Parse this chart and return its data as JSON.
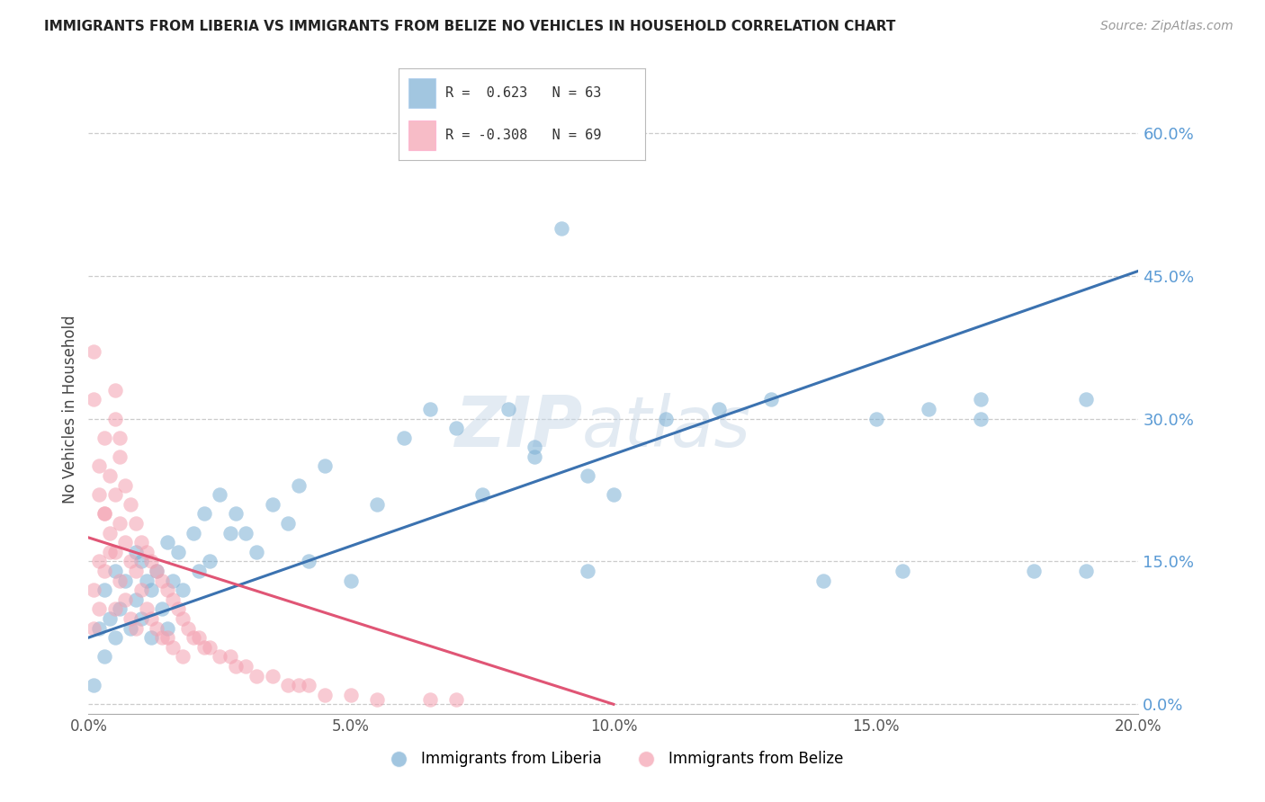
{
  "title": "IMMIGRANTS FROM LIBERIA VS IMMIGRANTS FROM BELIZE NO VEHICLES IN HOUSEHOLD CORRELATION CHART",
  "source": "Source: ZipAtlas.com",
  "ylabel": "No Vehicles in Household",
  "xlim": [
    0.0,
    0.2
  ],
  "ylim": [
    -0.01,
    0.63
  ],
  "yticks": [
    0.0,
    0.15,
    0.3,
    0.45,
    0.6
  ],
  "xticks": [
    0.0,
    0.05,
    0.1,
    0.15,
    0.2
  ],
  "liberia_R": 0.623,
  "liberia_N": 63,
  "belize_R": -0.308,
  "belize_N": 69,
  "liberia_color": "#7BAFD4",
  "belize_color": "#F4A0B0",
  "liberia_line_color": "#3B72B0",
  "belize_line_color": "#E05575",
  "watermark_zip": "ZIP",
  "watermark_atlas": "atlas",
  "background_color": "#FFFFFF",
  "grid_color": "#CCCCCC",
  "axis_label_color": "#5B9BD5",
  "blue_line_x0": 0.0,
  "blue_line_y0": 0.07,
  "blue_line_x1": 0.2,
  "blue_line_y1": 0.455,
  "pink_line_x0": 0.0,
  "pink_line_y0": 0.175,
  "pink_line_x1": 0.1,
  "pink_line_y1": 0.0,
  "liberia_x": [
    0.001,
    0.002,
    0.003,
    0.003,
    0.004,
    0.005,
    0.005,
    0.006,
    0.007,
    0.008,
    0.009,
    0.009,
    0.01,
    0.01,
    0.011,
    0.012,
    0.012,
    0.013,
    0.014,
    0.015,
    0.015,
    0.016,
    0.017,
    0.018,
    0.02,
    0.021,
    0.022,
    0.023,
    0.025,
    0.027,
    0.028,
    0.03,
    0.032,
    0.035,
    0.038,
    0.04,
    0.042,
    0.045,
    0.05,
    0.055,
    0.06,
    0.065,
    0.07,
    0.075,
    0.08,
    0.085,
    0.09,
    0.095,
    0.1,
    0.11,
    0.12,
    0.13,
    0.14,
    0.15,
    0.16,
    0.17,
    0.18,
    0.19,
    0.085,
    0.095,
    0.155,
    0.17,
    0.19
  ],
  "liberia_y": [
    0.02,
    0.08,
    0.12,
    0.05,
    0.09,
    0.14,
    0.07,
    0.1,
    0.13,
    0.08,
    0.16,
    0.11,
    0.15,
    0.09,
    0.13,
    0.12,
    0.07,
    0.14,
    0.1,
    0.17,
    0.08,
    0.13,
    0.16,
    0.12,
    0.18,
    0.14,
    0.2,
    0.15,
    0.22,
    0.18,
    0.2,
    0.18,
    0.16,
    0.21,
    0.19,
    0.23,
    0.15,
    0.25,
    0.13,
    0.21,
    0.28,
    0.31,
    0.29,
    0.22,
    0.31,
    0.26,
    0.5,
    0.24,
    0.22,
    0.3,
    0.31,
    0.32,
    0.13,
    0.3,
    0.31,
    0.32,
    0.14,
    0.14,
    0.27,
    0.14,
    0.14,
    0.3,
    0.32
  ],
  "belize_x": [
    0.001,
    0.001,
    0.001,
    0.002,
    0.002,
    0.002,
    0.003,
    0.003,
    0.003,
    0.004,
    0.004,
    0.005,
    0.005,
    0.005,
    0.005,
    0.006,
    0.006,
    0.006,
    0.007,
    0.007,
    0.007,
    0.008,
    0.008,
    0.008,
    0.009,
    0.009,
    0.009,
    0.01,
    0.01,
    0.011,
    0.011,
    0.012,
    0.012,
    0.013,
    0.013,
    0.014,
    0.014,
    0.015,
    0.015,
    0.016,
    0.016,
    0.017,
    0.018,
    0.018,
    0.019,
    0.02,
    0.021,
    0.022,
    0.023,
    0.025,
    0.027,
    0.028,
    0.03,
    0.032,
    0.035,
    0.038,
    0.04,
    0.042,
    0.045,
    0.05,
    0.055,
    0.065,
    0.07,
    0.001,
    0.002,
    0.003,
    0.004,
    0.005,
    0.006
  ],
  "belize_y": [
    0.37,
    0.12,
    0.08,
    0.22,
    0.15,
    0.1,
    0.28,
    0.2,
    0.14,
    0.24,
    0.18,
    0.3,
    0.22,
    0.16,
    0.1,
    0.26,
    0.19,
    0.13,
    0.23,
    0.17,
    0.11,
    0.21,
    0.15,
    0.09,
    0.19,
    0.14,
    0.08,
    0.17,
    0.12,
    0.16,
    0.1,
    0.15,
    0.09,
    0.14,
    0.08,
    0.13,
    0.07,
    0.12,
    0.07,
    0.11,
    0.06,
    0.1,
    0.09,
    0.05,
    0.08,
    0.07,
    0.07,
    0.06,
    0.06,
    0.05,
    0.05,
    0.04,
    0.04,
    0.03,
    0.03,
    0.02,
    0.02,
    0.02,
    0.01,
    0.01,
    0.005,
    0.005,
    0.005,
    0.32,
    0.25,
    0.2,
    0.16,
    0.33,
    0.28
  ]
}
